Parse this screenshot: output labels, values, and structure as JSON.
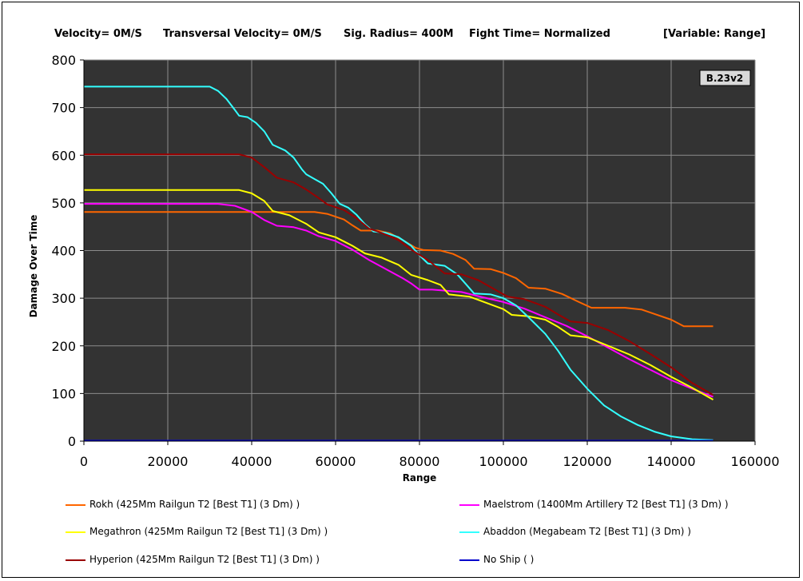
{
  "header": {
    "velocity": "Velocity= 0M/S",
    "transversal": "Transversal Velocity= 0M/S",
    "sig_radius": "Sig. Radius= 400M",
    "fight_time": "Fight Time= Normalized",
    "variable": "[Variable: Range]"
  },
  "version_badge": "B.23v2",
  "chart_data": {
    "type": "line",
    "xlabel": "Range",
    "ylabel": "Damage Over Time",
    "xlim": [
      0,
      160000
    ],
    "ylim": [
      0,
      800
    ],
    "xticks": [
      0,
      20000,
      40000,
      60000,
      80000,
      100000,
      120000,
      140000,
      160000
    ],
    "yticks": [
      0,
      100,
      200,
      300,
      400,
      500,
      600,
      700,
      800
    ],
    "grid": true,
    "background": "#333333",
    "legend_placement": "bottom",
    "series": [
      {
        "name": "Rokh (425Mm Railgun T2 [Best T1] (3 Dm) )",
        "color": "#ff6600",
        "points": [
          [
            0,
            481
          ],
          [
            55000,
            481
          ],
          [
            58000,
            477
          ],
          [
            62000,
            465
          ],
          [
            64000,
            453
          ],
          [
            66000,
            442
          ],
          [
            70000,
            442
          ],
          [
            73000,
            436
          ],
          [
            76000,
            422
          ],
          [
            79000,
            406
          ],
          [
            81000,
            401
          ],
          [
            85000,
            400
          ],
          [
            88000,
            393
          ],
          [
            91000,
            380
          ],
          [
            93000,
            362
          ],
          [
            97000,
            361
          ],
          [
            100000,
            353
          ],
          [
            103000,
            342
          ],
          [
            106000,
            322
          ],
          [
            110000,
            320
          ],
          [
            114000,
            309
          ],
          [
            118000,
            292
          ],
          [
            121000,
            280
          ],
          [
            129000,
            280
          ],
          [
            133000,
            276
          ],
          [
            136000,
            267
          ],
          [
            140000,
            255
          ],
          [
            143000,
            241
          ],
          [
            150000,
            241
          ]
        ]
      },
      {
        "name": "Maelstrom (1400Mm Artillery T2 [Best T1] (3 Dm) )",
        "color": "#ff00ff",
        "points": [
          [
            0,
            498
          ],
          [
            32000,
            498
          ],
          [
            36000,
            494
          ],
          [
            40000,
            481
          ],
          [
            43000,
            464
          ],
          [
            46000,
            452
          ],
          [
            50000,
            449
          ],
          [
            53000,
            442
          ],
          [
            56000,
            430
          ],
          [
            60000,
            420
          ],
          [
            64000,
            402
          ],
          [
            68000,
            380
          ],
          [
            72000,
            361
          ],
          [
            76000,
            342
          ],
          [
            78000,
            331
          ],
          [
            80000,
            318
          ],
          [
            83000,
            318
          ],
          [
            86000,
            316
          ],
          [
            90000,
            313
          ],
          [
            95000,
            302
          ],
          [
            100000,
            292
          ],
          [
            105000,
            278
          ],
          [
            110000,
            260
          ],
          [
            115000,
            242
          ],
          [
            120000,
            220
          ],
          [
            125000,
            196
          ],
          [
            130000,
            172
          ],
          [
            135000,
            150
          ],
          [
            140000,
            128
          ],
          [
            145000,
            110
          ],
          [
            150000,
            93
          ]
        ]
      },
      {
        "name": "Megathron (425Mm Railgun T2 [Best T1] (3 Dm) )",
        "color": "#ffff00",
        "points": [
          [
            0,
            527
          ],
          [
            37000,
            527
          ],
          [
            40000,
            520
          ],
          [
            43000,
            504
          ],
          [
            45000,
            483
          ],
          [
            49000,
            474
          ],
          [
            53000,
            456
          ],
          [
            56000,
            438
          ],
          [
            60000,
            428
          ],
          [
            64000,
            410
          ],
          [
            67000,
            394
          ],
          [
            71000,
            385
          ],
          [
            75000,
            370
          ],
          [
            78000,
            349
          ],
          [
            82000,
            338
          ],
          [
            85000,
            328
          ],
          [
            87000,
            308
          ],
          [
            92000,
            303
          ],
          [
            96000,
            290
          ],
          [
            100000,
            277
          ],
          [
            102000,
            265
          ],
          [
            106000,
            262
          ],
          [
            110000,
            255
          ],
          [
            113000,
            240
          ],
          [
            116000,
            222
          ],
          [
            120000,
            218
          ],
          [
            125000,
            200
          ],
          [
            130000,
            182
          ],
          [
            135000,
            160
          ],
          [
            140000,
            135
          ],
          [
            145000,
            112
          ],
          [
            150000,
            87
          ]
        ]
      },
      {
        "name": "Abaddon (Megabeam T2 [Best T1] (3 Dm) )",
        "color": "#33ffff",
        "points": [
          [
            0,
            744
          ],
          [
            30000,
            744
          ],
          [
            32000,
            735
          ],
          [
            34000,
            718
          ],
          [
            36000,
            695
          ],
          [
            37000,
            683
          ],
          [
            39000,
            680
          ],
          [
            41000,
            668
          ],
          [
            43000,
            650
          ],
          [
            45000,
            622
          ],
          [
            48000,
            610
          ],
          [
            50000,
            595
          ],
          [
            52000,
            570
          ],
          [
            53000,
            560
          ],
          [
            55000,
            550
          ],
          [
            57000,
            540
          ],
          [
            59000,
            520
          ],
          [
            61000,
            498
          ],
          [
            63000,
            490
          ],
          [
            65000,
            475
          ],
          [
            67000,
            455
          ],
          [
            69000,
            440
          ],
          [
            72000,
            437
          ],
          [
            75000,
            428
          ],
          [
            78000,
            410
          ],
          [
            80000,
            390
          ],
          [
            82000,
            373
          ],
          [
            86000,
            368
          ],
          [
            89000,
            350
          ],
          [
            91000,
            330
          ],
          [
            93000,
            310
          ],
          [
            97000,
            308
          ],
          [
            100000,
            300
          ],
          [
            103000,
            285
          ],
          [
            106000,
            260
          ],
          [
            110000,
            225
          ],
          [
            113000,
            190
          ],
          [
            116000,
            150
          ],
          [
            120000,
            110
          ],
          [
            124000,
            75
          ],
          [
            128000,
            52
          ],
          [
            132000,
            34
          ],
          [
            136000,
            20
          ],
          [
            140000,
            10
          ],
          [
            145000,
            4
          ],
          [
            150000,
            2
          ]
        ]
      },
      {
        "name": "Hyperion (425Mm Railgun T2 [Best T1] (3 Dm) )",
        "color": "#990000",
        "points": [
          [
            0,
            602
          ],
          [
            37000,
            602
          ],
          [
            40000,
            595
          ],
          [
            43000,
            575
          ],
          [
            46000,
            553
          ],
          [
            50000,
            543
          ],
          [
            53000,
            528
          ],
          [
            56000,
            510
          ],
          [
            58000,
            497
          ],
          [
            62000,
            485
          ],
          [
            65000,
            468
          ],
          [
            68000,
            446
          ],
          [
            71000,
            437
          ],
          [
            75000,
            422
          ],
          [
            78000,
            402
          ],
          [
            82000,
            380
          ],
          [
            86000,
            352
          ],
          [
            90000,
            350
          ],
          [
            94000,
            338
          ],
          [
            98000,
            318
          ],
          [
            101000,
            303
          ],
          [
            105000,
            298
          ],
          [
            110000,
            282
          ],
          [
            113000,
            266
          ],
          [
            116000,
            251
          ],
          [
            120000,
            248
          ],
          [
            125000,
            233
          ],
          [
            130000,
            210
          ],
          [
            135000,
            183
          ],
          [
            140000,
            155
          ],
          [
            145000,
            122
          ],
          [
            150000,
            97
          ]
        ]
      },
      {
        "name": "No Ship ( )",
        "color": "#0000cc",
        "points": [
          [
            0,
            1
          ],
          [
            150000,
            1
          ]
        ]
      }
    ]
  }
}
